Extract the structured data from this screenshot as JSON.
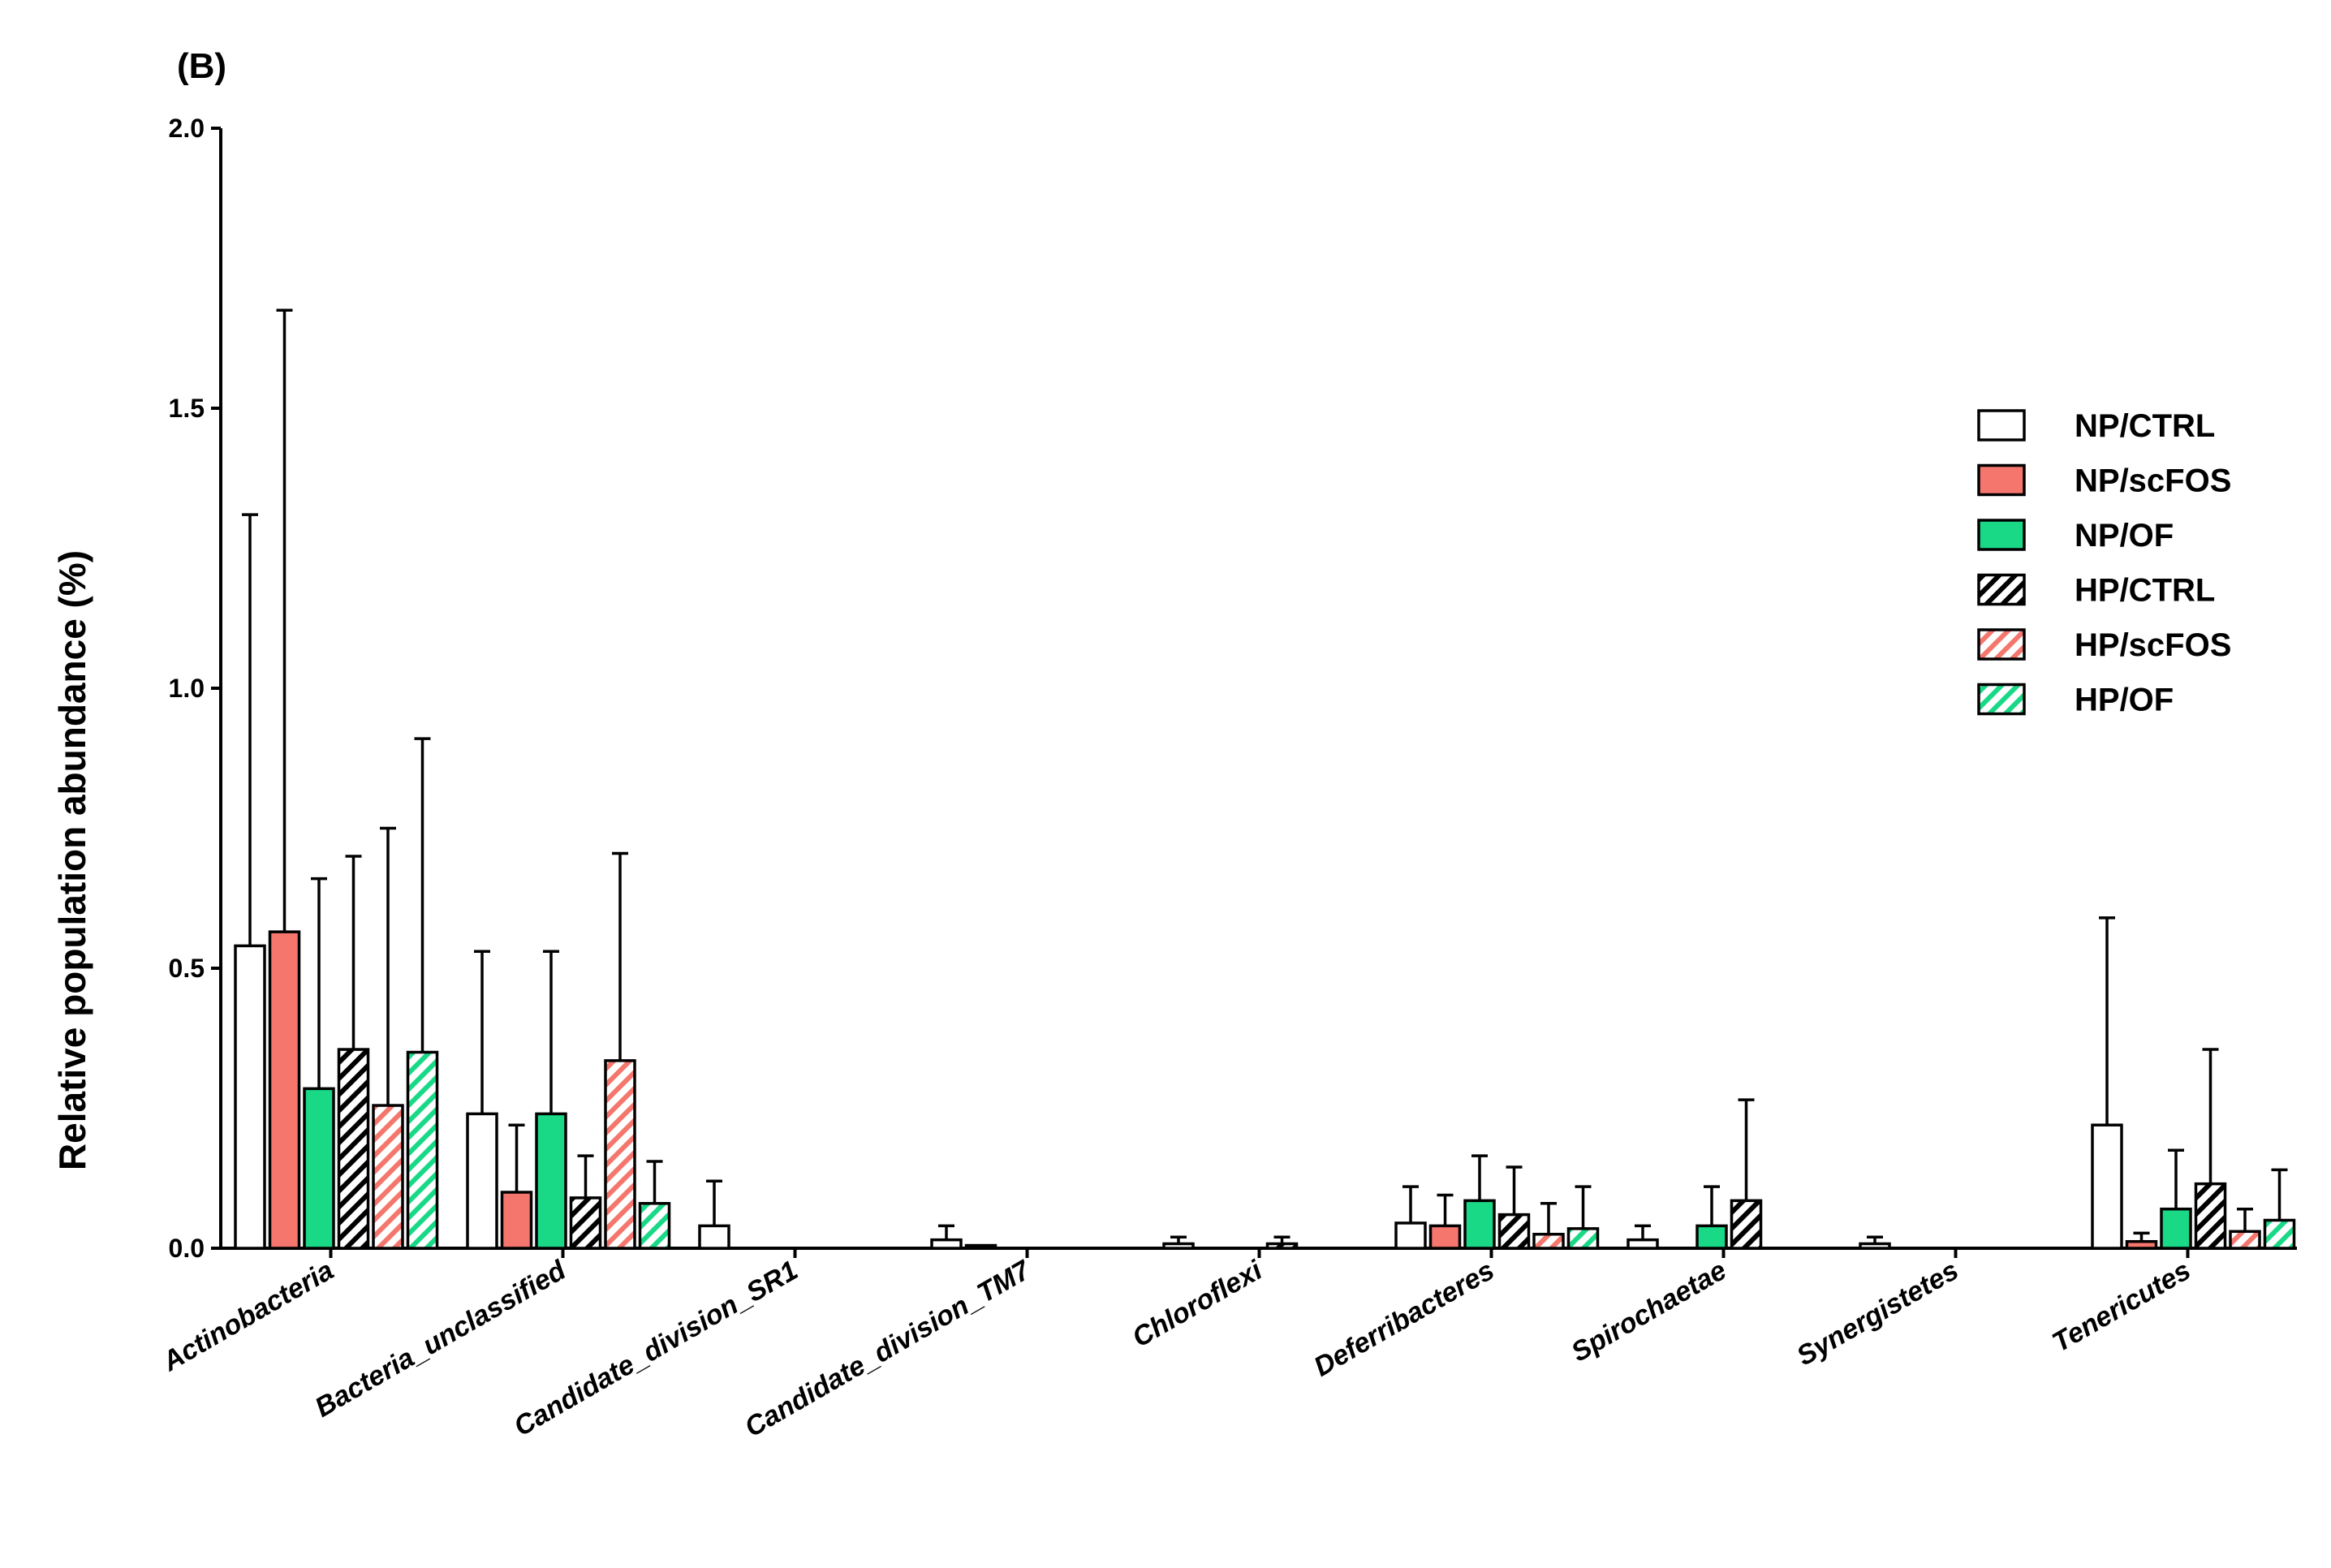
{
  "chart_data": {
    "type": "bar",
    "panel_label": "(B)",
    "ylabel": "Relative population abundance (%)",
    "xlabel": "",
    "ylim": [
      0,
      2.0
    ],
    "yticks": [
      "0.0",
      "0.5",
      "1.0",
      "1.5",
      "2.0"
    ],
    "grid": false,
    "legend_position": "top-right",
    "categories": [
      "Actinobacteria",
      "Bacteria_unclassified",
      "Candidate_division_SR1",
      "Candidate_division_TM7",
      "Chloroflexi",
      "Deferribacteres",
      "Spirochaetae",
      "Synergistetes",
      "Tenericutes"
    ],
    "series": [
      {
        "name": "NP/CTRL",
        "color": "#ffffff",
        "hatched": false,
        "values": [
          0.54,
          0.24,
          0.04,
          0.015,
          0.008,
          0.045,
          0.015,
          0.008,
          0.22
        ],
        "errors": [
          0.77,
          0.29,
          0.08,
          0.025,
          0.012,
          0.065,
          0.025,
          0.012,
          0.37
        ]
      },
      {
        "name": "NP/scFOS",
        "color": "#f4766d",
        "hatched": false,
        "values": [
          0.565,
          0.1,
          0.0,
          0.005,
          0.0,
          0.04,
          0.0,
          0.0,
          0.012
        ],
        "errors": [
          1.11,
          0.12,
          0.0,
          0.0,
          0.0,
          0.055,
          0.0,
          0.0,
          0.015
        ]
      },
      {
        "name": "NP/OF",
        "color": "#19d987",
        "hatched": false,
        "values": [
          0.285,
          0.24,
          0.0,
          0.0,
          0.0,
          0.085,
          0.04,
          0.0,
          0.07
        ],
        "errors": [
          0.375,
          0.29,
          0.0,
          0.0,
          0.0,
          0.08,
          0.07,
          0.0,
          0.105
        ]
      },
      {
        "name": "HP/CTRL",
        "color": "#ffffff",
        "hatched": true,
        "values": [
          0.355,
          0.09,
          0.0,
          0.0,
          0.008,
          0.06,
          0.085,
          0.0,
          0.115
        ],
        "errors": [
          0.345,
          0.075,
          0.0,
          0.0,
          0.012,
          0.085,
          0.18,
          0.0,
          0.24
        ]
      },
      {
        "name": "HP/scFOS",
        "color": "#f4766d",
        "hatched": true,
        "values": [
          0.255,
          0.335,
          0.0,
          0.0,
          0.0,
          0.025,
          0.0,
          0.0,
          0.03
        ],
        "errors": [
          0.495,
          0.37,
          0.0,
          0.0,
          0.0,
          0.055,
          0.0,
          0.0,
          0.04
        ]
      },
      {
        "name": "HP/OF",
        "color": "#19d987",
        "hatched": true,
        "values": [
          0.35,
          0.08,
          0.0,
          0.0,
          0.0,
          0.035,
          0.0,
          0.0,
          0.05
        ],
        "errors": [
          0.56,
          0.075,
          0.0,
          0.0,
          0.0,
          0.075,
          0.0,
          0.0,
          0.09
        ]
      }
    ]
  }
}
